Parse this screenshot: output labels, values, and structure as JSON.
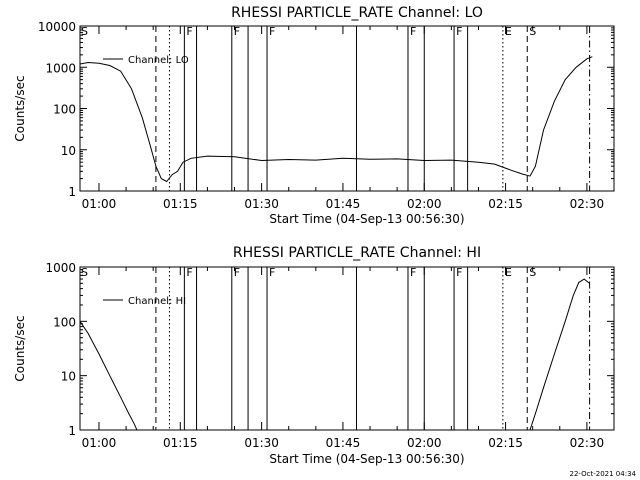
{
  "chart_data": [
    {
      "type": "line",
      "title": "RHESSI PARTICLE_RATE Channel: LO",
      "xlabel": "Start Time (04-Sep-13 00:56:30)",
      "ylabel": "Counts/sec",
      "yscale": "log",
      "xlim": [
        "00:56:30",
        "02:35:00"
      ],
      "ylim": [
        1,
        10000
      ],
      "x_ticks": [
        "01:00",
        "01:15",
        "01:30",
        "01:45",
        "02:00",
        "02:15",
        "02:30"
      ],
      "y_ticks": [
        "1",
        "10",
        "100",
        "1000",
        "10000"
      ],
      "legend": "top-left",
      "series": [
        {
          "name": "Channel: LO",
          "x": [
            "00:56:30",
            "00:58:00",
            "01:00:00",
            "01:02:00",
            "01:04:00",
            "01:06:00",
            "01:08:00",
            "01:09:30",
            "01:10:30",
            "01:11:30",
            "01:12:30",
            "01:13:30",
            "01:14:30",
            "01:15:30",
            "01:17:00",
            "01:20:00",
            "01:25:00",
            "01:30:00",
            "01:35:00",
            "01:40:00",
            "01:45:00",
            "01:50:00",
            "01:55:00",
            "02:00:00",
            "02:05:00",
            "02:10:00",
            "02:13:00",
            "02:16:00",
            "02:18:00",
            "02:19:30",
            "02:20:30",
            "02:22:00",
            "02:24:00",
            "02:26:00",
            "02:28:00",
            "02:30:00",
            "02:31:00"
          ],
          "y": [
            1200,
            1300,
            1250,
            1100,
            800,
            300,
            60,
            12,
            4,
            2,
            1.7,
            2.5,
            3,
            5,
            6.2,
            7,
            6.8,
            5.5,
            5.8,
            5.6,
            6.2,
            5.9,
            6,
            5.5,
            5.6,
            5,
            4.5,
            3.2,
            2.6,
            2.3,
            4,
            30,
            150,
            500,
            1000,
            1600,
            1800
          ]
        }
      ],
      "vertical_lines": [
        {
          "x": "01:10:30",
          "style": "dashed",
          "flag": ""
        },
        {
          "x": "01:13:00",
          "style": "dotted",
          "flag": ""
        },
        {
          "x": "01:15:45",
          "style": "solid",
          "flag": "F"
        },
        {
          "x": "01:18:00",
          "style": "solid",
          "flag": ""
        },
        {
          "x": "01:24:30",
          "style": "solid",
          "flag": "F"
        },
        {
          "x": "01:27:30",
          "style": "solid",
          "flag": ""
        },
        {
          "x": "01:31:00",
          "style": "solid",
          "flag": "F"
        },
        {
          "x": "01:47:30",
          "style": "solid",
          "flag": ""
        },
        {
          "x": "01:57:00",
          "style": "solid",
          "flag": "F"
        },
        {
          "x": "02:00:00",
          "style": "solid",
          "flag": ""
        },
        {
          "x": "02:05:30",
          "style": "solid",
          "flag": "F"
        },
        {
          "x": "02:08:00",
          "style": "solid",
          "flag": ""
        },
        {
          "x": "02:14:30",
          "style": "dotted",
          "flag": "E"
        },
        {
          "x": "02:19:00",
          "style": "dashed",
          "flag": "S"
        },
        {
          "x": "02:30:30",
          "style": "dashdot",
          "flag": ""
        }
      ],
      "left_flag": "S"
    },
    {
      "type": "line",
      "title": "RHESSI PARTICLE_RATE Channel: HI",
      "xlabel": "Start Time (04-Sep-13 00:56:30)",
      "ylabel": "Counts/sec",
      "yscale": "log",
      "xlim": [
        "00:56:30",
        "02:35:00"
      ],
      "ylim": [
        1,
        1000
      ],
      "x_ticks": [
        "01:00",
        "01:15",
        "01:30",
        "01:45",
        "02:00",
        "02:15",
        "02:30"
      ],
      "y_ticks": [
        "1",
        "10",
        "100",
        "1000"
      ],
      "legend": "top-left",
      "series": [
        {
          "name": "Channel: HI",
          "x": [
            "00:56:30",
            "00:58:00",
            "01:00:00",
            "01:02:00",
            "01:04:00",
            "01:05:30",
            "01:06:30",
            "01:07:00",
            "02:19:30",
            "02:20:30",
            "02:22:00",
            "02:24:00",
            "02:26:00",
            "02:27:30",
            "02:28:30",
            "02:29:30",
            "02:30:30"
          ],
          "y": [
            100,
            60,
            25,
            10,
            4,
            2,
            1.3,
            1,
            1,
            2,
            6,
            25,
            100,
            300,
            520,
            600,
            500
          ]
        }
      ],
      "vertical_lines": [
        {
          "x": "01:10:30",
          "style": "dashed",
          "flag": ""
        },
        {
          "x": "01:13:00",
          "style": "dotted",
          "flag": ""
        },
        {
          "x": "01:15:45",
          "style": "solid",
          "flag": "F"
        },
        {
          "x": "01:18:00",
          "style": "solid",
          "flag": ""
        },
        {
          "x": "01:24:30",
          "style": "solid",
          "flag": "F"
        },
        {
          "x": "01:27:30",
          "style": "solid",
          "flag": ""
        },
        {
          "x": "01:31:00",
          "style": "solid",
          "flag": "F"
        },
        {
          "x": "01:47:30",
          "style": "solid",
          "flag": ""
        },
        {
          "x": "01:57:00",
          "style": "solid",
          "flag": "F"
        },
        {
          "x": "02:00:00",
          "style": "solid",
          "flag": ""
        },
        {
          "x": "02:05:30",
          "style": "solid",
          "flag": "F"
        },
        {
          "x": "02:08:00",
          "style": "solid",
          "flag": ""
        },
        {
          "x": "02:14:30",
          "style": "dotted",
          "flag": "E"
        },
        {
          "x": "02:19:00",
          "style": "dashed",
          "flag": "S"
        },
        {
          "x": "02:30:30",
          "style": "dashdot",
          "flag": ""
        }
      ],
      "left_flag": "S"
    }
  ],
  "footer": {
    "timestamp": "22-Oct-2021 04:34"
  }
}
